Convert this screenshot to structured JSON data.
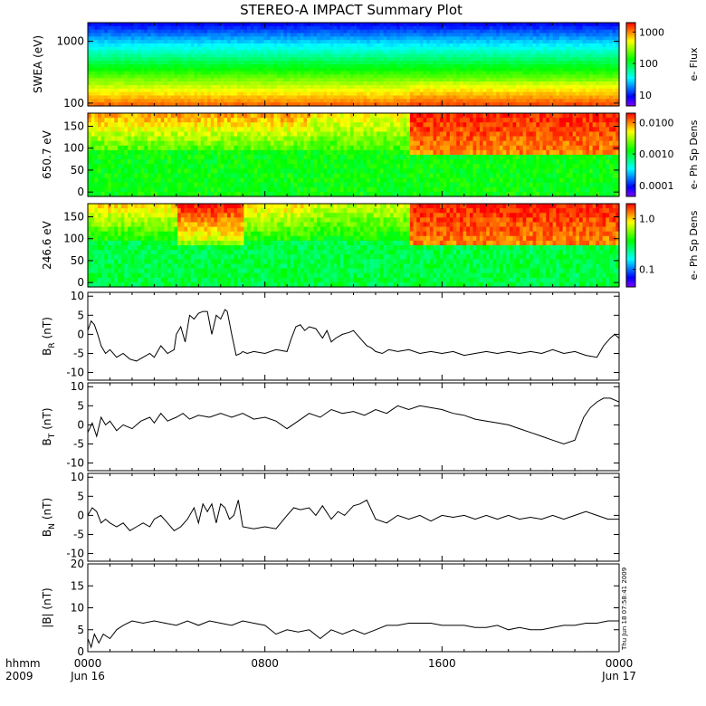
{
  "title": "STEREO-A IMPACT Summary Plot",
  "timestamp": "Thu Jun 18 07:58:41 2009",
  "x_axis": {
    "row1_labels": [
      "hhmm",
      "0000",
      "0800",
      "1600",
      "0000"
    ],
    "row2_labels": [
      "2009",
      "Jun 16",
      "Jun 17"
    ],
    "ticks_hours": [
      0,
      8,
      16,
      24
    ],
    "range_hours": [
      0,
      24
    ]
  },
  "chart_data": [
    {
      "type": "heatmap",
      "ylabel": "SWEA (eV)",
      "yscale": "log",
      "ylim": [
        90,
        2000
      ],
      "yticks": [
        100,
        1000
      ],
      "ytick_labels": [
        "100",
        "1000"
      ],
      "colorbar": {
        "label": "e- Flux",
        "scale": "log",
        "ticks": [
          10,
          100,
          1000
        ],
        "tick_labels": [
          "10",
          "100",
          "1000"
        ]
      }
    },
    {
      "type": "heatmap",
      "ylabel": "650.7 eV",
      "ylim": [
        -10,
        180
      ],
      "yticks": [
        0,
        50,
        100,
        150
      ],
      "ytick_labels": [
        "0",
        "50",
        "100",
        "150"
      ],
      "colorbar": {
        "label": "e- Ph Sp Dens",
        "scale": "log",
        "ticks": [
          0.0001,
          0.001,
          0.01
        ],
        "tick_labels": [
          "0.0001",
          "0.0010",
          "0.0100"
        ]
      }
    },
    {
      "type": "heatmap",
      "ylabel": "246.6 eV",
      "ylim": [
        -10,
        180
      ],
      "yticks": [
        0,
        50,
        100,
        150
      ],
      "ytick_labels": [
        "0",
        "50",
        "100",
        "150"
      ],
      "colorbar": {
        "label": "e- Ph Sp Dens",
        "scale": "log",
        "ticks": [
          0.1,
          1.0
        ],
        "tick_labels": [
          "0.1",
          "1.0"
        ]
      }
    },
    {
      "type": "line",
      "ylabel": "B",
      "ylabel_sub": "R",
      "ylabel_unit": "(nT)",
      "ylim": [
        -12,
        11
      ],
      "yticks": [
        -10,
        -5,
        0,
        5,
        10
      ],
      "ytick_labels": [
        "-10",
        "-5",
        "0",
        "5",
        "10"
      ],
      "x": [
        0,
        0.15,
        0.3,
        0.45,
        0.6,
        0.8,
        1,
        1.3,
        1.6,
        1.9,
        2.2,
        2.5,
        2.8,
        3,
        3.3,
        3.6,
        3.9,
        4,
        4.2,
        4.4,
        4.6,
        4.8,
        5,
        5.2,
        5.4,
        5.6,
        5.8,
        6,
        6.2,
        6.3,
        6.5,
        6.7,
        6.9,
        7,
        7.2,
        7.5,
        8,
        8.5,
        9,
        9.2,
        9.4,
        9.6,
        9.8,
        10,
        10.3,
        10.6,
        10.8,
        11,
        11.2,
        11.5,
        11.8,
        12,
        12.3,
        12.6,
        12.8,
        13,
        13.3,
        13.6,
        14,
        14.5,
        15,
        15.5,
        16,
        16.5,
        17,
        17.5,
        18,
        18.5,
        19,
        19.5,
        20,
        20.5,
        21,
        21.5,
        22,
        22.5,
        23,
        23.3,
        23.6,
        23.8,
        24
      ],
      "y": [
        1,
        3.5,
        2.5,
        0,
        -3,
        -5,
        -4,
        -6,
        -5,
        -6.5,
        -7,
        -6,
        -5,
        -6,
        -3,
        -5,
        -4,
        0,
        2,
        -2,
        5,
        4,
        5.5,
        6,
        6,
        0,
        5,
        4,
        6.5,
        6,
        0,
        -5.5,
        -5,
        -4.5,
        -5,
        -4.5,
        -5,
        -4,
        -4.5,
        -1,
        2,
        2.5,
        1,
        2,
        1.5,
        -1,
        1,
        -2,
        -1,
        0,
        0.5,
        1,
        -1,
        -3,
        -3.5,
        -4.5,
        -5,
        -4,
        -4.5,
        -4,
        -5,
        -4.5,
        -5,
        -4.5,
        -5.5,
        -5,
        -4.5,
        -5,
        -4.5,
        -5,
        -4.5,
        -5,
        -4,
        -5,
        -4.5,
        -5.5,
        -6,
        -3,
        -1,
        0,
        -1
      ]
    },
    {
      "type": "line",
      "ylabel": "B",
      "ylabel_sub": "T",
      "ylabel_unit": "(nT)",
      "ylim": [
        -12,
        11
      ],
      "yticks": [
        -10,
        -5,
        0,
        5,
        10
      ],
      "ytick_labels": [
        "-10",
        "-5",
        "0",
        "5",
        "10"
      ],
      "x": [
        0,
        0.2,
        0.4,
        0.6,
        0.8,
        1,
        1.3,
        1.6,
        2,
        2.4,
        2.8,
        3,
        3.3,
        3.6,
        4,
        4.3,
        4.6,
        5,
        5.5,
        6,
        6.5,
        7,
        7.5,
        8,
        8.5,
        9,
        9.5,
        10,
        10.5,
        11,
        11.5,
        12,
        12.5,
        13,
        13.5,
        14,
        14.5,
        15,
        15.5,
        16,
        16.5,
        17,
        17.5,
        18,
        18.5,
        19,
        19.5,
        20,
        20.5,
        21,
        21.5,
        22,
        22.4,
        22.7,
        23,
        23.3,
        23.6,
        24
      ],
      "y": [
        -2,
        0.5,
        -3,
        2,
        0,
        1,
        -1.5,
        0,
        -1,
        1,
        2,
        0.5,
        3,
        1,
        2,
        3,
        1.5,
        2.5,
        2,
        3,
        2,
        3,
        1.5,
        2,
        1,
        -1,
        1,
        3,
        2,
        4,
        3,
        3.5,
        2.5,
        4,
        3,
        5,
        4,
        5,
        4.5,
        4,
        3,
        2.5,
        1.5,
        1,
        0.5,
        0,
        -1,
        -2,
        -3,
        -4,
        -5,
        -4,
        2,
        4.5,
        6,
        7,
        7,
        6
      ]
    },
    {
      "type": "line",
      "ylabel": "B",
      "ylabel_sub": "N",
      "ylabel_unit": "(nT)",
      "ylim": [
        -12,
        11
      ],
      "yticks": [
        -10,
        -5,
        0,
        5,
        10
      ],
      "ytick_labels": [
        "-10",
        "-5",
        "0",
        "5",
        "10"
      ],
      "x": [
        0,
        0.2,
        0.4,
        0.6,
        0.8,
        1,
        1.3,
        1.6,
        1.9,
        2.2,
        2.5,
        2.8,
        3,
        3.3,
        3.6,
        3.9,
        4.2,
        4.5,
        4.8,
        5,
        5.2,
        5.4,
        5.6,
        5.8,
        6,
        6.2,
        6.4,
        6.6,
        6.8,
        7,
        7.5,
        8,
        8.5,
        9,
        9.3,
        9.6,
        10,
        10.3,
        10.6,
        11,
        11.3,
        11.6,
        12,
        12.3,
        12.6,
        13,
        13.5,
        14,
        14.5,
        15,
        15.5,
        16,
        16.5,
        17,
        17.5,
        18,
        18.5,
        19,
        19.5,
        20,
        20.5,
        21,
        21.5,
        22,
        22.5,
        23,
        23.5,
        24
      ],
      "y": [
        0,
        2,
        1,
        -2,
        -1,
        -2,
        -3,
        -2,
        -4,
        -3,
        -2,
        -3,
        -1,
        0,
        -2,
        -4,
        -3,
        -1,
        2,
        -2,
        3,
        1,
        3,
        -2,
        3,
        2,
        -1,
        0,
        4,
        -3,
        -3.5,
        -3,
        -3.5,
        0,
        2,
        1.5,
        2,
        0,
        2.5,
        -1,
        1,
        0,
        2.5,
        3,
        4,
        -1,
        -2,
        0,
        -1,
        0,
        -1.5,
        0,
        -0.5,
        0,
        -1,
        0,
        -1,
        0,
        -1,
        -0.5,
        -1,
        0,
        -1,
        0,
        1,
        0,
        -1,
        -1
      ]
    },
    {
      "type": "line",
      "ylabel": "|B| (nT)",
      "ylim": [
        0,
        20
      ],
      "yticks": [
        0,
        5,
        10,
        15,
        20
      ],
      "ytick_labels": [
        "0",
        "5",
        "10",
        "15",
        "20"
      ],
      "x": [
        0,
        0.15,
        0.3,
        0.5,
        0.7,
        1,
        1.3,
        1.6,
        2,
        2.5,
        3,
        3.5,
        4,
        4.5,
        5,
        5.5,
        6,
        6.5,
        7,
        7.5,
        8,
        8.5,
        9,
        9.5,
        10,
        10.5,
        11,
        11.5,
        12,
        12.5,
        13,
        13.5,
        14,
        14.5,
        15,
        15.5,
        16,
        16.5,
        17,
        17.5,
        18,
        18.5,
        19,
        19.5,
        20,
        20.5,
        21,
        21.5,
        22,
        22.5,
        23,
        23.5,
        24
      ],
      "y": [
        3,
        1,
        4,
        2,
        4,
        3,
        5,
        6,
        7,
        6.5,
        7,
        6.5,
        6,
        7,
        6,
        7,
        6.5,
        6,
        7,
        6.5,
        6,
        4,
        5,
        4.5,
        5,
        3,
        5,
        4,
        5,
        4,
        5,
        6,
        6,
        6.5,
        6.5,
        6.5,
        6,
        6,
        6,
        5.5,
        5.5,
        6,
        5,
        5.5,
        5,
        5,
        5.5,
        6,
        6,
        6.5,
        6.5,
        7,
        7
      ]
    }
  ]
}
